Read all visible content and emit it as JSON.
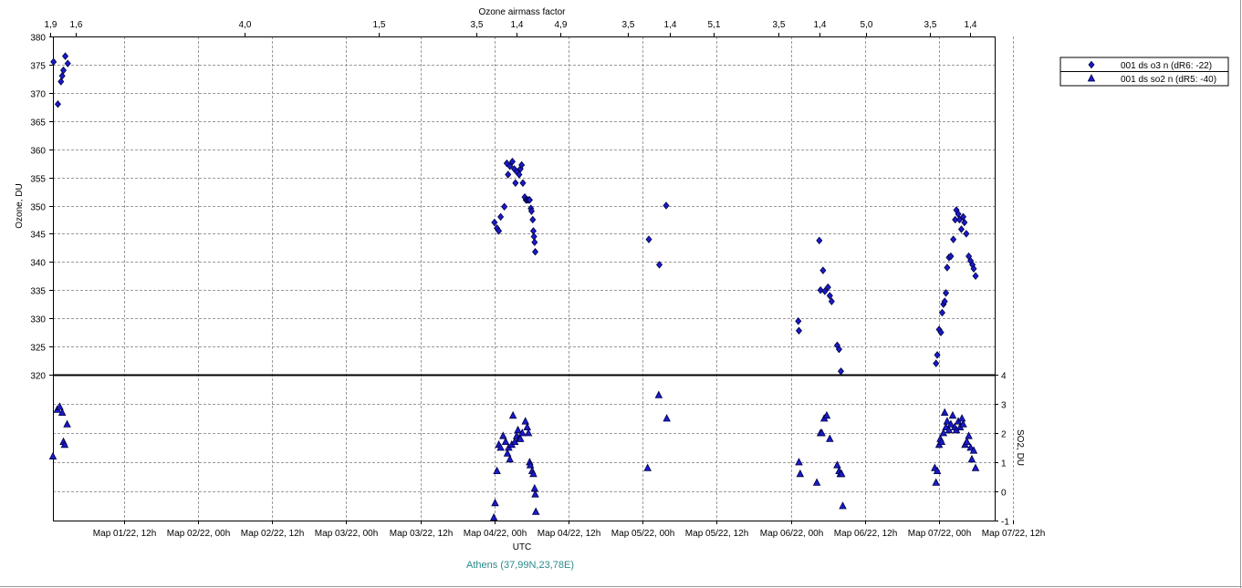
{
  "colors": {
    "marker_fill": "#1a1acc",
    "marker_stroke": "#000040",
    "grid": "#9a9a9a",
    "divider": "#000000",
    "station": "#2b8a8a"
  },
  "chart_data": {
    "type": "scatter",
    "top_axis_title": "Ozone airmass factor",
    "top_axis_ticks": [
      "1,9",
      "1,6",
      "4,0",
      "1,5",
      "3,5",
      "1,4",
      "4,9",
      "3,5",
      "1,4",
      "5,1",
      "3,5",
      "1,4",
      "5,0",
      "3,5",
      "1,4"
    ],
    "x_axis_title": "UTC",
    "x_ticks": [
      "Мар 01/22, 12h",
      "Мар 02/22, 00h",
      "Мар 02/22, 12h",
      "Мар 03/22, 00h",
      "Мар 03/22, 12h",
      "Мар 04/22, 00h",
      "Мар 04/22, 12h",
      "Мар 05/22, 00h",
      "Мар 05/22, 12h",
      "Мар 06/22, 00h",
      "Мар 06/22, 12h",
      "Мар 07/22, 00h",
      "Мар 07/22, 12h"
    ],
    "x_range_hours": [
      0.5,
      153
    ],
    "grid": true,
    "legend_position": "top-right",
    "station_label": "Athens (37,99N,23,78E)",
    "panels": [
      {
        "name": "ozone",
        "ylabel": "Ozone, DU",
        "ylim": [
          320,
          380
        ],
        "yticks": [
          "380",
          "375",
          "370",
          "365",
          "360",
          "355",
          "350",
          "345",
          "340",
          "335",
          "330",
          "325",
          "320"
        ],
        "series": [
          {
            "name": "001 ds o3  n (dR6: -22)",
            "marker": "diamond",
            "points": [
              [
                0.6,
                375.5
              ],
              [
                1.3,
                368
              ],
              [
                1.8,
                372
              ],
              [
                2.0,
                373
              ],
              [
                2.2,
                374
              ],
              [
                2.5,
                376.5
              ],
              [
                2.9,
                375.2
              ],
              [
                72.0,
                347
              ],
              [
                72.4,
                346
              ],
              [
                72.7,
                345.5
              ],
              [
                73.0,
                348
              ],
              [
                73.6,
                349.8
              ],
              [
                74.0,
                357.5
              ],
              [
                74.2,
                355.5
              ],
              [
                74.5,
                357
              ],
              [
                74.9,
                357.8
              ],
              [
                75.2,
                356.5
              ],
              [
                75.4,
                354
              ],
              [
                75.6,
                356
              ],
              [
                76.0,
                355.5
              ],
              [
                76.2,
                356.5
              ],
              [
                76.4,
                357.2
              ],
              [
                76.6,
                354
              ],
              [
                76.9,
                351.5
              ],
              [
                77.1,
                351
              ],
              [
                77.3,
                351
              ],
              [
                77.5,
                351
              ],
              [
                77.7,
                351
              ],
              [
                77.9,
                349.5
              ],
              [
                78.0,
                349
              ],
              [
                78.2,
                347.5
              ],
              [
                78.3,
                345.5
              ],
              [
                78.4,
                344.5
              ],
              [
                78.5,
                343.5
              ],
              [
                78.6,
                341.8
              ],
              [
                97.0,
                344
              ],
              [
                98.7,
                339.5
              ],
              [
                99.8,
                350
              ],
              [
                121.2,
                329.5
              ],
              [
                121.3,
                327.8
              ],
              [
                124.6,
                343.8
              ],
              [
                124.8,
                335
              ],
              [
                125.2,
                338.5
              ],
              [
                125.5,
                334.8
              ],
              [
                126.0,
                335.5
              ],
              [
                126.3,
                334
              ],
              [
                126.6,
                333
              ],
              [
                127.5,
                325.2
              ],
              [
                127.8,
                324.5
              ],
              [
                128.1,
                320.6
              ],
              [
                143.5,
                322
              ],
              [
                143.7,
                323.5
              ],
              [
                144.0,
                328
              ],
              [
                144.3,
                327.5
              ],
              [
                144.5,
                331
              ],
              [
                144.7,
                332.5
              ],
              [
                144.9,
                333
              ],
              [
                145.1,
                334.5
              ],
              [
                145.3,
                339
              ],
              [
                145.6,
                340.8
              ],
              [
                145.9,
                341
              ],
              [
                146.3,
                344
              ],
              [
                146.6,
                347.5
              ],
              [
                146.8,
                349.2
              ],
              [
                147.1,
                348.5
              ],
              [
                147.3,
                347.5
              ],
              [
                147.6,
                345.8
              ],
              [
                147.9,
                348
              ],
              [
                148.1,
                347
              ],
              [
                148.4,
                345
              ],
              [
                148.8,
                341
              ],
              [
                149.1,
                340.2
              ],
              [
                149.4,
                339.5
              ],
              [
                149.6,
                338.8
              ],
              [
                149.9,
                337.5
              ]
            ]
          }
        ]
      },
      {
        "name": "so2",
        "ylabel": "SO2, DU",
        "ylim": [
          -1,
          4
        ],
        "yticks": [
          "4",
          "3",
          "2",
          "1",
          "0",
          "-1"
        ],
        "series": [
          {
            "name": "001 ds so2 n (dR5: -40)",
            "marker": "triangle",
            "points": [
              [
                0.5,
                1.2
              ],
              [
                1.2,
                2.8
              ],
              [
                1.6,
                2.9
              ],
              [
                2.0,
                2.7
              ],
              [
                2.2,
                1.7
              ],
              [
                2.4,
                1.6
              ],
              [
                2.8,
                2.3
              ],
              [
                71.9,
                -0.9
              ],
              [
                72.1,
                -0.4
              ],
              [
                72.4,
                0.7
              ],
              [
                72.7,
                1.6
              ],
              [
                73.0,
                1.5
              ],
              [
                73.4,
                1.9
              ],
              [
                73.8,
                1.7
              ],
              [
                74.1,
                1.3
              ],
              [
                74.3,
                1.5
              ],
              [
                74.5,
                1.1
              ],
              [
                74.8,
                1.6
              ],
              [
                75.0,
                2.6
              ],
              [
                75.3,
                1.7
              ],
              [
                75.6,
                1.9
              ],
              [
                75.8,
                2.1
              ],
              [
                76.0,
                1.8
              ],
              [
                76.2,
                1.8
              ],
              [
                76.5,
                2.0
              ],
              [
                77.0,
                2.4
              ],
              [
                77.3,
                2.2
              ],
              [
                77.5,
                2.0
              ],
              [
                77.7,
                1.0
              ],
              [
                77.8,
                0.9
              ],
              [
                78.1,
                0.7
              ],
              [
                78.3,
                0.6
              ],
              [
                78.5,
                0.1
              ],
              [
                78.6,
                -0.1
              ],
              [
                78.7,
                -0.7
              ],
              [
                96.8,
                0.8
              ],
              [
                98.6,
                3.3
              ],
              [
                99.9,
                2.5
              ],
              [
                121.3,
                1.0
              ],
              [
                121.5,
                0.6
              ],
              [
                124.2,
                0.3
              ],
              [
                124.8,
                2.0
              ],
              [
                125.0,
                2.0
              ],
              [
                125.4,
                2.5
              ],
              [
                125.8,
                2.6
              ],
              [
                126.3,
                1.8
              ],
              [
                127.5,
                0.9
              ],
              [
                127.8,
                0.7
              ],
              [
                128.0,
                0.6
              ],
              [
                128.2,
                0.6
              ],
              [
                128.4,
                -0.5
              ],
              [
                143.3,
                0.8
              ],
              [
                143.5,
                0.3
              ],
              [
                143.7,
                0.7
              ],
              [
                144.0,
                1.6
              ],
              [
                144.2,
                1.8
              ],
              [
                144.4,
                1.7
              ],
              [
                144.7,
                2.0
              ],
              [
                144.9,
                2.7
              ],
              [
                145.1,
                2.2
              ],
              [
                145.3,
                2.4
              ],
              [
                145.6,
                2.1
              ],
              [
                145.9,
                2.3
              ],
              [
                146.2,
                2.6
              ],
              [
                146.5,
                2.2
              ],
              [
                146.8,
                2.1
              ],
              [
                147.1,
                2.4
              ],
              [
                147.4,
                2.2
              ],
              [
                147.7,
                2.5
              ],
              [
                147.9,
                2.3
              ],
              [
                148.2,
                1.6
              ],
              [
                148.5,
                1.7
              ],
              [
                148.8,
                1.9
              ],
              [
                149.1,
                1.5
              ],
              [
                149.3,
                1.1
              ],
              [
                149.6,
                1.4
              ],
              [
                149.9,
                0.8
              ]
            ]
          }
        ]
      }
    ]
  }
}
